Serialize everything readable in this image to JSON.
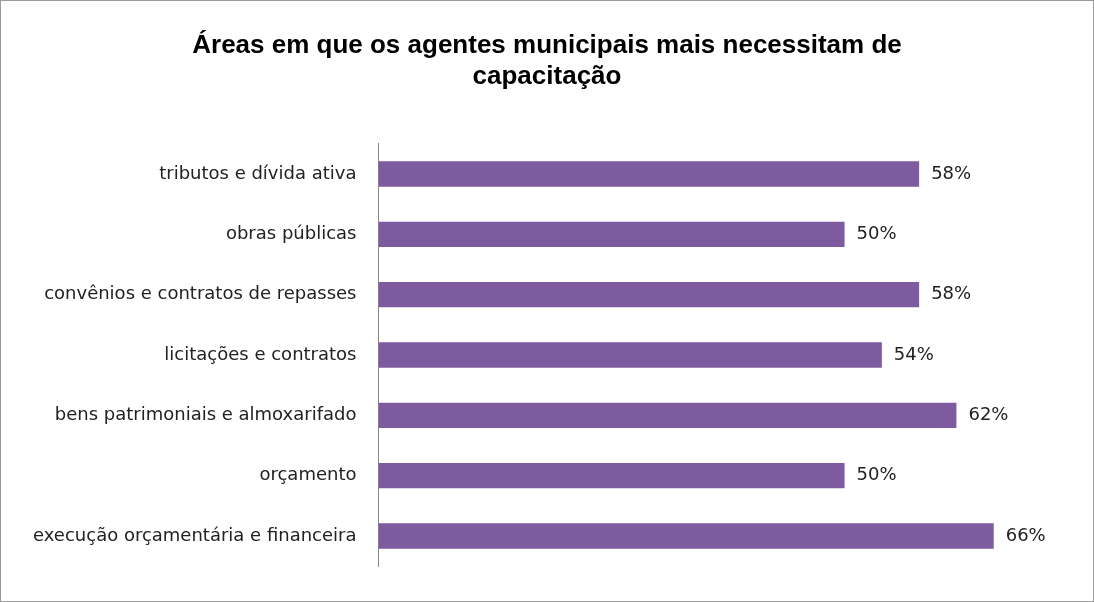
{
  "chart_data": {
    "type": "bar",
    "orientation": "horizontal",
    "title": "Áreas em que os agentes municipais mais necessitam de capacitação",
    "categories": [
      "tributos e dívida ativa",
      "obras públicas",
      "convênios e contratos de repasses",
      "licitações e contratos",
      "bens patrimoniais e almoxarifado",
      "orçamento",
      "execução orçamentária e financeira"
    ],
    "values": [
      58,
      50,
      58,
      54,
      62,
      50,
      66
    ],
    "value_labels": [
      "58%",
      "50%",
      "58%",
      "54%",
      "62%",
      "50%",
      "66%"
    ],
    "color": "#7e5a9e",
    "legend": false
  }
}
